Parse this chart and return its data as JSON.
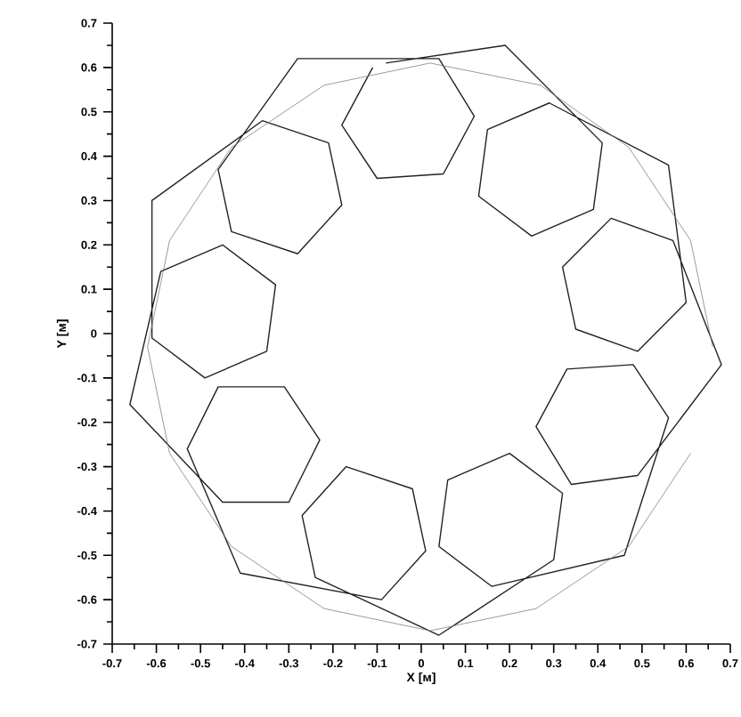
{
  "chart_data": {
    "type": "line",
    "xlabel": "X [м]",
    "ylabel": "Y [м]",
    "xlim": [
      -0.7,
      0.7
    ],
    "ylim": [
      -0.7,
      0.7
    ],
    "xticks": [
      -0.7,
      -0.6,
      -0.5,
      -0.4,
      -0.3,
      -0.2,
      -0.1,
      0,
      0.1,
      0.2,
      0.3,
      0.4,
      0.5,
      0.6,
      0.7
    ],
    "yticks": [
      -0.7,
      -0.6,
      -0.5,
      -0.4,
      -0.3,
      -0.2,
      -0.1,
      0,
      0.1,
      0.2,
      0.3,
      0.4,
      0.5,
      0.6,
      0.7
    ],
    "marker": "none",
    "line_style": "solid",
    "series": [
      {
        "color": "#222222",
        "x": [
          -0.11,
          -0.18,
          -0.1,
          0.05,
          0.12,
          0.04,
          -0.28,
          -0.46,
          -0.43,
          -0.28,
          -0.18,
          -0.21,
          -0.36,
          -0.61,
          -0.61,
          -0.49,
          -0.35,
          -0.33,
          -0.45,
          -0.59,
          -0.66,
          -0.45,
          -0.3,
          -0.23,
          -0.31,
          -0.46,
          -0.53,
          -0.41,
          -0.09,
          0.01,
          -0.02,
          -0.17,
          -0.27,
          -0.24,
          0.04,
          0.3,
          0.32,
          0.2,
          0.06,
          0.04,
          0.16,
          0.46,
          0.56,
          0.48,
          0.33,
          0.26,
          0.34,
          0.49,
          0.68,
          0.57,
          0.43,
          0.32,
          0.35,
          0.49,
          0.6,
          0.56,
          0.29,
          0.15,
          0.13,
          0.25,
          0.39,
          0.41,
          0.19,
          -0.08
        ],
        "values": [
          0.6,
          0.47,
          0.35,
          0.36,
          0.49,
          0.62,
          0.62,
          0.37,
          0.23,
          0.18,
          0.29,
          0.43,
          0.48,
          0.3,
          -0.01,
          -0.1,
          -0.04,
          0.11,
          0.2,
          0.14,
          -0.16,
          -0.38,
          -0.38,
          -0.24,
          -0.12,
          -0.12,
          -0.26,
          -0.54,
          -0.6,
          -0.49,
          -0.35,
          -0.3,
          -0.41,
          -0.55,
          -0.68,
          -0.51,
          -0.36,
          -0.27,
          -0.33,
          -0.48,
          -0.57,
          -0.5,
          -0.19,
          -0.07,
          -0.08,
          -0.21,
          -0.34,
          -0.32,
          -0.07,
          0.21,
          0.26,
          0.15,
          0.01,
          -0.04,
          0.07,
          0.38,
          0.52,
          0.46,
          0.31,
          0.22,
          0.28,
          0.43,
          0.65,
          0.61
        ]
      },
      {
        "color": "#808080",
        "x": [
          0.66,
          0.61,
          0.47,
          0.27,
          0.02,
          -0.22,
          -0.43,
          -0.57,
          -0.62,
          -0.57,
          -0.43,
          -0.22,
          0.02,
          0.26,
          0.47,
          0.61
        ],
        "values": [
          -0.03,
          0.21,
          0.42,
          0.56,
          0.61,
          0.56,
          0.42,
          0.21,
          -0.03,
          -0.27,
          -0.48,
          -0.62,
          -0.67,
          -0.62,
          -0.48,
          -0.27
        ]
      }
    ]
  }
}
